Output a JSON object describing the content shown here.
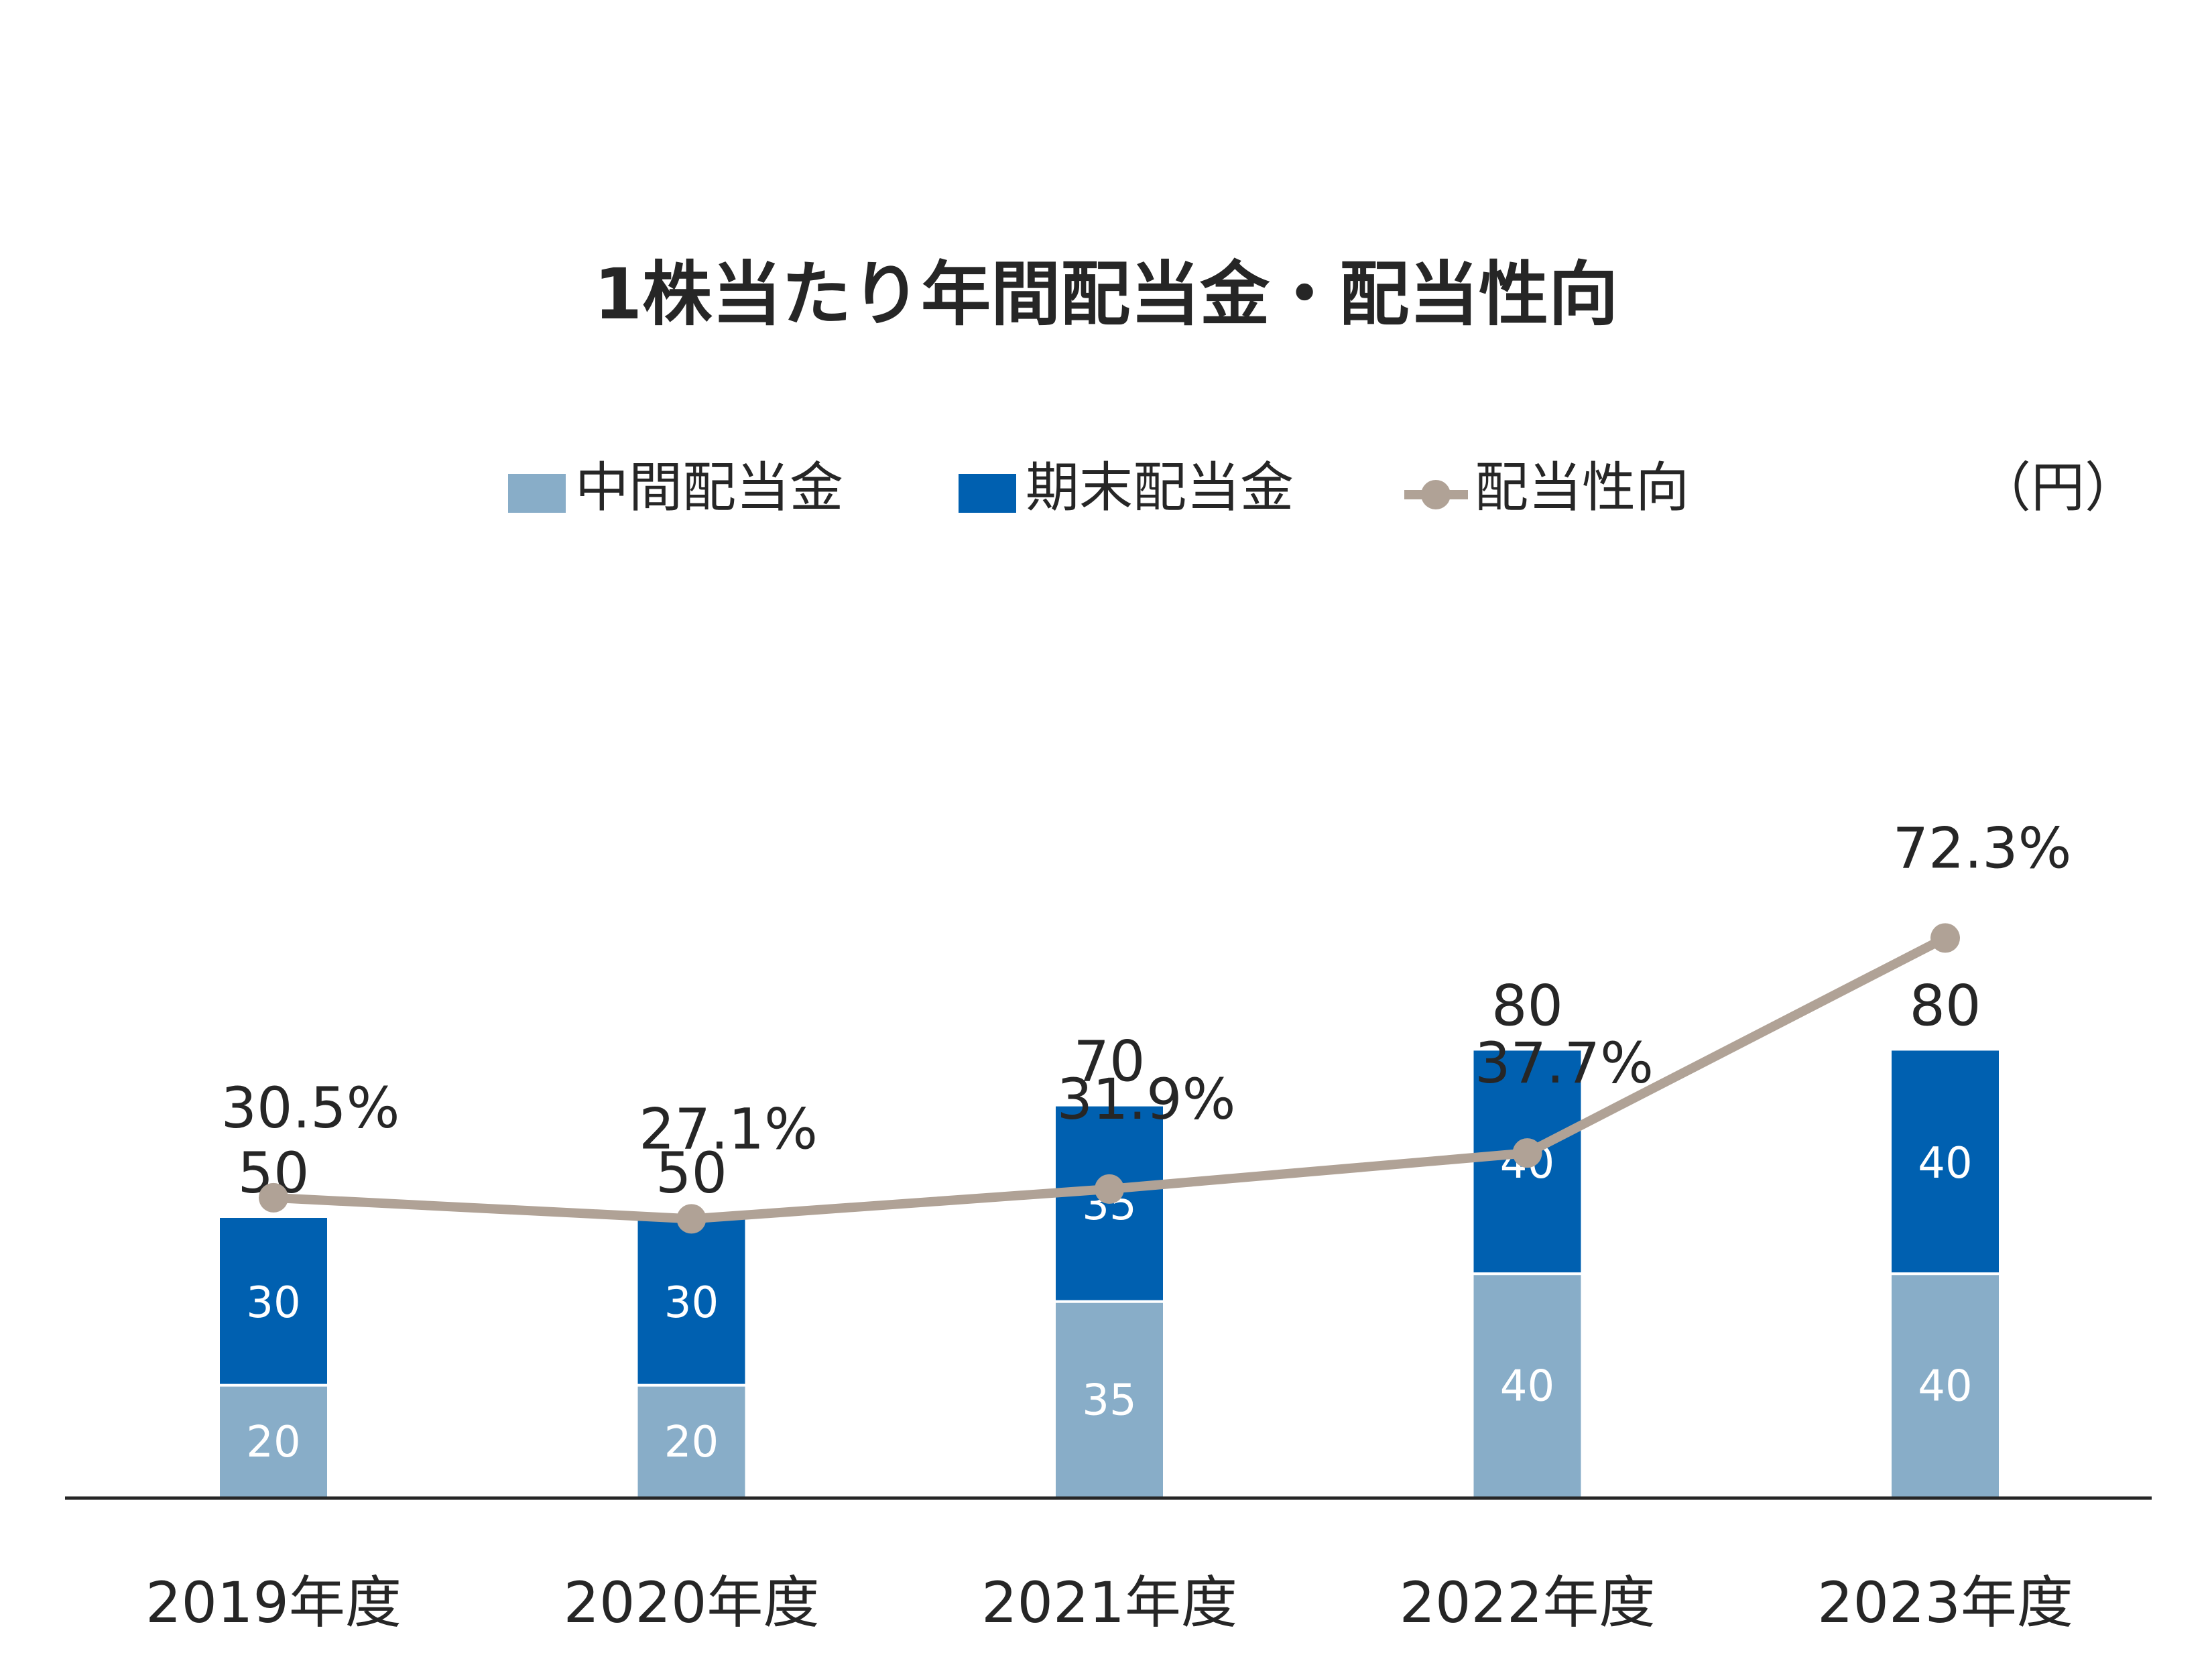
{
  "chart_data": {
    "type": "bar",
    "stacked": true,
    "title": "1株当たり年間配当金・配当性向",
    "unit": "（円）",
    "categories": [
      "2019年度",
      "2020年度",
      "2021年度",
      "2022年度",
      "2023年度"
    ],
    "series": [
      {
        "name": "中間配当金",
        "type": "bar",
        "color": "#88ADC8",
        "values": [
          20,
          20,
          35,
          40,
          40
        ]
      },
      {
        "name": "期末配当金",
        "type": "bar",
        "color": "#0060B0",
        "values": [
          30,
          30,
          35,
          40,
          40
        ]
      },
      {
        "name": "配当性向",
        "type": "line",
        "color": "#B0A296",
        "values": [
          30.5,
          27.1,
          31.9,
          37.7,
          72.3
        ],
        "labels": [
          "30.5%",
          "27.1%",
          "31.9%",
          "37.7%",
          "72.3%"
        ]
      }
    ],
    "totals": [
      50,
      50,
      70,
      80,
      80
    ],
    "legend_position": "top",
    "grid": false
  }
}
